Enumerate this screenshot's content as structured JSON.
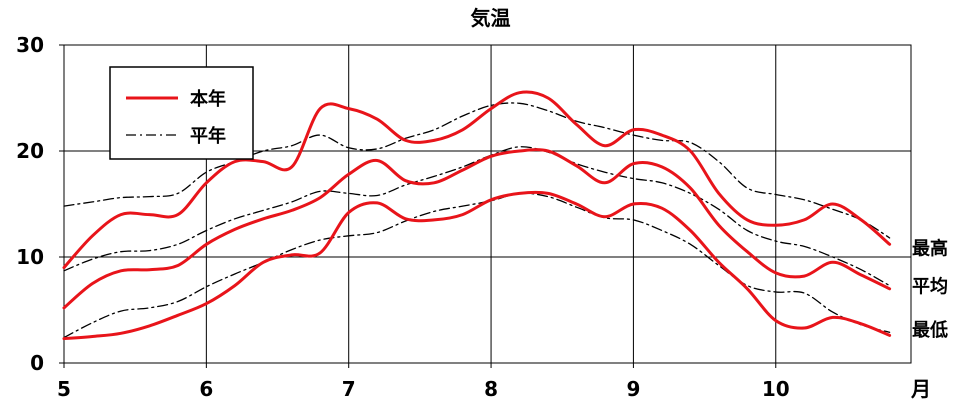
{
  "chart_data": {
    "type": "line",
    "title": "気温",
    "xlabel": "月",
    "ylabel": "",
    "ylim": [
      0,
      30
    ],
    "yticks": [
      "0",
      "10",
      "20",
      "30"
    ],
    "xlim": [
      5,
      10.95
    ],
    "xticks": [
      "5",
      "6",
      "7",
      "8",
      "9",
      "10"
    ],
    "grid": true,
    "legend_position": "top-left",
    "legend": [
      {
        "label": "本年",
        "style": "solid",
        "color": "#e8141a"
      },
      {
        "label": "平年",
        "style": "dash-dot",
        "color": "#000000"
      }
    ],
    "side_labels": [
      "最高",
      "平均",
      "最低"
    ],
    "series": [
      {
        "name": "本年",
        "group": "最高",
        "style": "solid",
        "color": "#e8141a",
        "x": [
          5.0,
          5.2,
          5.4,
          5.6,
          5.8,
          6.0,
          6.2,
          6.4,
          6.6,
          6.8,
          7.0,
          7.2,
          7.4,
          7.6,
          7.8,
          8.0,
          8.2,
          8.4,
          8.6,
          8.8,
          9.0,
          9.2,
          9.4,
          9.6,
          9.8,
          10.0,
          10.2,
          10.4,
          10.6,
          10.8
        ],
        "values": [
          9,
          12,
          14,
          14,
          14,
          17,
          19,
          19,
          18.5,
          24,
          24,
          23,
          21,
          21,
          22,
          24,
          25.5,
          25,
          22.5,
          20.5,
          22,
          21.5,
          20,
          16,
          13.5,
          13,
          13.5,
          15,
          13.5,
          11.2
        ]
      },
      {
        "name": "本年",
        "group": "平均",
        "style": "solid",
        "color": "#e8141a",
        "x": [
          5.0,
          5.2,
          5.4,
          5.6,
          5.8,
          6.0,
          6.2,
          6.4,
          6.6,
          6.8,
          7.0,
          7.2,
          7.4,
          7.6,
          7.8,
          8.0,
          8.2,
          8.4,
          8.6,
          8.8,
          9.0,
          9.2,
          9.4,
          9.6,
          9.8,
          10.0,
          10.2,
          10.4,
          10.6,
          10.8
        ],
        "values": [
          5.2,
          7.5,
          8.7,
          8.8,
          9.2,
          11.2,
          12.6,
          13.6,
          14.4,
          15.6,
          17.8,
          19.1,
          17.2,
          17,
          18.2,
          19.5,
          20,
          20,
          18.6,
          17,
          18.8,
          18.5,
          16.5,
          13,
          10.5,
          8.5,
          8.2,
          9.5,
          8.3,
          7
        ]
      },
      {
        "name": "本年",
        "group": "最低",
        "style": "solid",
        "color": "#e8141a",
        "x": [
          5.0,
          5.2,
          5.4,
          5.6,
          5.8,
          6.0,
          6.2,
          6.4,
          6.6,
          6.8,
          7.0,
          7.2,
          7.4,
          7.6,
          7.8,
          8.0,
          8.2,
          8.4,
          8.6,
          8.8,
          9.0,
          9.2,
          9.4,
          9.6,
          9.8,
          10.0,
          10.2,
          10.4,
          10.6,
          10.8
        ],
        "values": [
          2.3,
          2.5,
          2.8,
          3.5,
          4.5,
          5.6,
          7.3,
          9.5,
          10.2,
          10.4,
          14.2,
          15.1,
          13.6,
          13.5,
          14,
          15.4,
          16,
          16,
          15,
          13.8,
          15,
          14.6,
          12.5,
          9.5,
          7,
          4,
          3.3,
          4.3,
          3.7,
          2.6
        ]
      },
      {
        "name": "平年",
        "group": "最高",
        "style": "dash-dot",
        "color": "#000000",
        "x": [
          5.0,
          5.2,
          5.4,
          5.6,
          5.8,
          6.0,
          6.2,
          6.4,
          6.6,
          6.8,
          7.0,
          7.2,
          7.4,
          7.6,
          7.8,
          8.0,
          8.2,
          8.4,
          8.6,
          8.8,
          9.0,
          9.2,
          9.4,
          9.6,
          9.8,
          10.0,
          10.2,
          10.4,
          10.6,
          10.8
        ],
        "values": [
          14.8,
          15.2,
          15.6,
          15.7,
          16,
          18,
          19,
          20,
          20.5,
          21.5,
          20.3,
          20.2,
          21.2,
          22,
          23.3,
          24.3,
          24.5,
          23.8,
          22.8,
          22.2,
          21.5,
          21,
          20.8,
          19,
          16.5,
          15.9,
          15.4,
          14.5,
          13.5,
          11.8
        ]
      },
      {
        "name": "平年",
        "group": "平均",
        "style": "dash-dot",
        "color": "#000000",
        "x": [
          5.0,
          5.2,
          5.4,
          5.6,
          5.8,
          6.0,
          6.2,
          6.4,
          6.6,
          6.8,
          7.0,
          7.2,
          7.4,
          7.6,
          7.8,
          8.0,
          8.2,
          8.4,
          8.6,
          8.8,
          9.0,
          9.2,
          9.4,
          9.6,
          9.8,
          10.0,
          10.2,
          10.4,
          10.6,
          10.8
        ],
        "values": [
          8.7,
          9.8,
          10.5,
          10.6,
          11.2,
          12.5,
          13.6,
          14.4,
          15.2,
          16.2,
          16,
          15.8,
          16.8,
          17.6,
          18.5,
          19.6,
          20.4,
          19.9,
          18.8,
          18,
          17.4,
          17,
          16,
          14.5,
          12.5,
          11.5,
          11,
          10,
          8.8,
          7.3
        ]
      },
      {
        "name": "平年",
        "group": "最低",
        "style": "dash-dot",
        "color": "#000000",
        "x": [
          5.0,
          5.2,
          5.4,
          5.6,
          5.8,
          6.0,
          6.2,
          6.4,
          6.6,
          6.8,
          7.0,
          7.2,
          7.4,
          7.6,
          7.8,
          8.0,
          8.2,
          8.4,
          8.6,
          8.8,
          9.0,
          9.2,
          9.4,
          9.6,
          9.8,
          10.0,
          10.2,
          10.4,
          10.6,
          10.8
        ],
        "values": [
          2.4,
          3.8,
          4.9,
          5.2,
          5.8,
          7.2,
          8.4,
          9.5,
          10.7,
          11.6,
          12,
          12.3,
          13.4,
          14.3,
          14.8,
          15.3,
          16,
          15.7,
          14.7,
          13.7,
          13.5,
          12.5,
          11.2,
          9.2,
          7.3,
          6.7,
          6.6,
          4.8,
          3.6,
          2.9
        ]
      }
    ]
  }
}
